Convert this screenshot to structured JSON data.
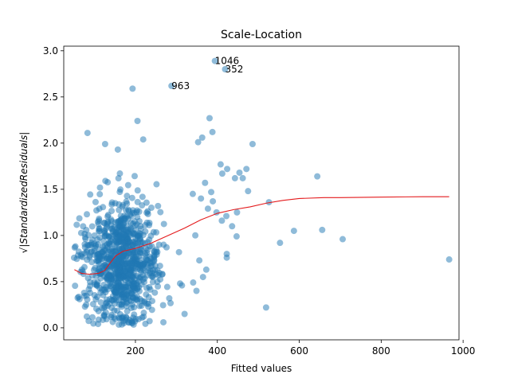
{
  "chart_data": {
    "type": "scatter",
    "title": "Scale-Location",
    "xlabel": "Fitted values",
    "ylabel": "√|StandardizedResiduals|",
    "xlim": [
      25,
      990
    ],
    "ylim": [
      -0.13,
      3.05
    ],
    "xticks": [
      200,
      400,
      600,
      800,
      1000
    ],
    "yticks": [
      0.0,
      0.5,
      1.0,
      1.5,
      2.0,
      2.5,
      3.0
    ],
    "xtick_labels": [
      "200",
      "400",
      "600",
      "800",
      "1000"
    ],
    "ytick_labels": [
      "0.0",
      "0.5",
      "1.0",
      "1.5",
      "2.0",
      "2.5",
      "3.0"
    ],
    "grid": false,
    "legend": "none",
    "colors": {
      "points": "#1f77b4",
      "smoother": "#e41a1c"
    },
    "annotations": [
      {
        "label": "1046",
        "x": 394,
        "y": 2.89
      },
      {
        "label": "352",
        "x": 419,
        "y": 2.8
      },
      {
        "label": "963",
        "x": 288,
        "y": 2.62
      }
    ],
    "outlier_points": [
      {
        "x": 394,
        "y": 2.89
      },
      {
        "x": 419,
        "y": 2.8
      },
      {
        "x": 288,
        "y": 2.62
      },
      {
        "x": 193,
        "y": 2.59
      },
      {
        "x": 205,
        "y": 2.24
      },
      {
        "x": 157,
        "y": 1.93
      },
      {
        "x": 126,
        "y": 1.99
      },
      {
        "x": 83,
        "y": 2.11
      },
      {
        "x": 219,
        "y": 2.04
      },
      {
        "x": 381,
        "y": 2.27
      },
      {
        "x": 388,
        "y": 2.12
      },
      {
        "x": 353,
        "y": 2.01
      },
      {
        "x": 363,
        "y": 2.06
      },
      {
        "x": 486,
        "y": 1.99
      },
      {
        "x": 424,
        "y": 1.72
      },
      {
        "x": 454,
        "y": 1.68
      },
      {
        "x": 462,
        "y": 1.62
      },
      {
        "x": 471,
        "y": 1.72
      },
      {
        "x": 443,
        "y": 1.62
      },
      {
        "x": 475,
        "y": 1.48
      },
      {
        "x": 526,
        "y": 1.36
      },
      {
        "x": 448,
        "y": 1.25
      },
      {
        "x": 398,
        "y": 1.25
      },
      {
        "x": 422,
        "y": 1.21
      },
      {
        "x": 411,
        "y": 1.16
      },
      {
        "x": 436,
        "y": 1.1
      },
      {
        "x": 447,
        "y": 0.99
      },
      {
        "x": 423,
        "y": 0.76
      },
      {
        "x": 423,
        "y": 0.8
      },
      {
        "x": 365,
        "y": 0.55
      },
      {
        "x": 356,
        "y": 0.73
      },
      {
        "x": 373,
        "y": 0.63
      },
      {
        "x": 341,
        "y": 0.49
      },
      {
        "x": 349,
        "y": 0.4
      },
      {
        "x": 309,
        "y": 0.48
      },
      {
        "x": 320,
        "y": 0.15
      },
      {
        "x": 587,
        "y": 1.05
      },
      {
        "x": 553,
        "y": 0.92
      },
      {
        "x": 656,
        "y": 1.06
      },
      {
        "x": 706,
        "y": 0.96
      },
      {
        "x": 644,
        "y": 1.64
      },
      {
        "x": 966,
        "y": 0.74
      },
      {
        "x": 519,
        "y": 0.22
      },
      {
        "x": 408,
        "y": 1.77
      },
      {
        "x": 412,
        "y": 1.67
      },
      {
        "x": 340,
        "y": 1.45
      },
      {
        "x": 370,
        "y": 1.57
      },
      {
        "x": 377,
        "y": 1.29
      },
      {
        "x": 360,
        "y": 1.4
      },
      {
        "x": 385,
        "y": 1.47
      },
      {
        "x": 389,
        "y": 1.37
      }
    ],
    "smoother": [
      {
        "x": 51,
        "y": 0.63
      },
      {
        "x": 68,
        "y": 0.59
      },
      {
        "x": 88,
        "y": 0.58
      },
      {
        "x": 110,
        "y": 0.59
      },
      {
        "x": 125,
        "y": 0.62
      },
      {
        "x": 138,
        "y": 0.7
      },
      {
        "x": 152,
        "y": 0.78
      },
      {
        "x": 170,
        "y": 0.83
      },
      {
        "x": 200,
        "y": 0.86
      },
      {
        "x": 240,
        "y": 0.92
      },
      {
        "x": 280,
        "y": 1.0
      },
      {
        "x": 320,
        "y": 1.08
      },
      {
        "x": 360,
        "y": 1.17
      },
      {
        "x": 400,
        "y": 1.24
      },
      {
        "x": 440,
        "y": 1.28
      },
      {
        "x": 480,
        "y": 1.31
      },
      {
        "x": 520,
        "y": 1.35
      },
      {
        "x": 560,
        "y": 1.38
      },
      {
        "x": 600,
        "y": 1.4
      },
      {
        "x": 660,
        "y": 1.41
      },
      {
        "x": 700,
        "y": 1.41
      },
      {
        "x": 800,
        "y": 1.415
      },
      {
        "x": 900,
        "y": 1.42
      },
      {
        "x": 966,
        "y": 1.42
      }
    ],
    "cloud": {
      "n_points": 900,
      "seed": 1046,
      "x_center": 150,
      "x_spread": 45,
      "x_min": 50,
      "y_center": 0.72,
      "y_spread": 0.33,
      "y_min": 0.03,
      "y_max": 1.78
    }
  }
}
